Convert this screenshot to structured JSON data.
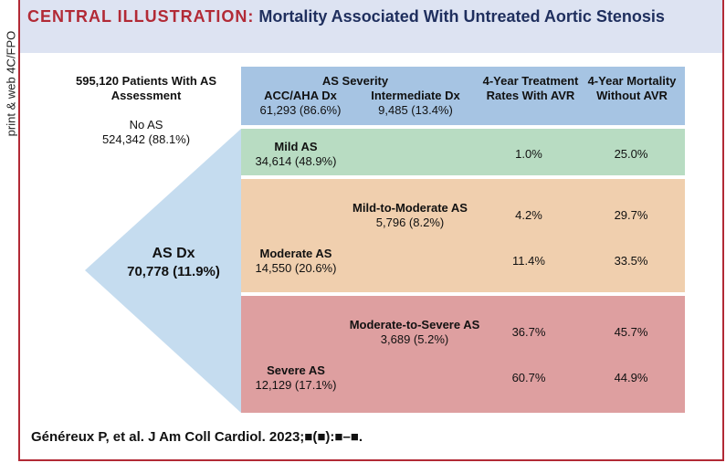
{
  "side_label": "print & web 4C/FPO",
  "title": {
    "prefix": "CENTRAL ILLUSTRATION:",
    "text": "Mortality Associated With Untreated Aortic Stenosis"
  },
  "left": {
    "total_label": "595,120 Patients With AS Assessment",
    "no_as_label": "No AS",
    "no_as_value": "524,342 (88.1%)",
    "as_dx_label": "AS Dx",
    "as_dx_value": "70,778 (11.9%)"
  },
  "header": {
    "as_severity": "AS Severity",
    "acc_label": "ACC/AHA Dx",
    "acc_value": "61,293 (86.6%)",
    "intermediate_label": "Intermediate Dx",
    "intermediate_value": "9,485 (13.4%)",
    "treatment_col": "4-Year Treatment Rates With AVR",
    "mortality_col": "4-Year Mortality Without AVR"
  },
  "rows": [
    {
      "name": "Mild AS",
      "count": "34,614 (48.9%)",
      "treatment": "1.0%",
      "mortality": "25.0%"
    },
    {
      "name": "Mild-to-Moderate AS",
      "count": "5,796 (8.2%)",
      "treatment": "4.2%",
      "mortality": "29.7%"
    },
    {
      "name": "Moderate AS",
      "count": "14,550 (20.6%)",
      "treatment": "11.4%",
      "mortality": "33.5%"
    },
    {
      "name": "Moderate-to-Severe AS",
      "count": "3,689 (5.2%)",
      "treatment": "36.7%",
      "mortality": "45.7%"
    },
    {
      "name": "Severe AS",
      "count": "12,129 (17.1%)",
      "treatment": "60.7%",
      "mortality": "44.9%"
    }
  ],
  "citation": "Généreux P, et al. J Am Coll Cardiol. 2023;■(■):■–■.",
  "colors": {
    "accent_red": "#b22a36",
    "header_band": "#dde3f2",
    "blue": "#a6c4e3",
    "green": "#b8dcc2",
    "orange": "#f0cfae",
    "red": "#de9fa0",
    "funnel": "#c5dcef"
  }
}
